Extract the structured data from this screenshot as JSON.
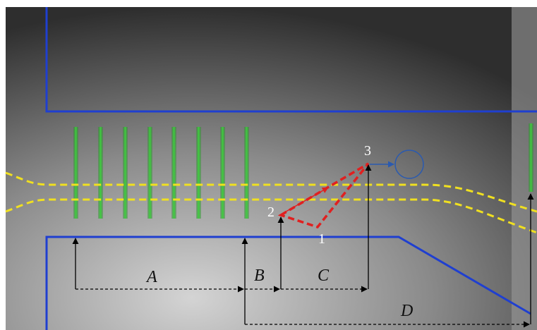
{
  "dimensions": [
    "A",
    "B",
    "C",
    "D"
  ],
  "points": [
    "1",
    "2",
    "3"
  ]
}
